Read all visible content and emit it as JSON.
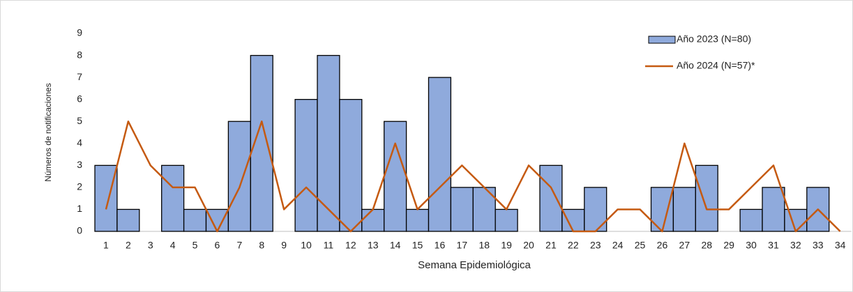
{
  "chart_data": {
    "type": "bar_line",
    "y_label": "Números de notificaciones",
    "x_label": "Semana Epidemiológica",
    "categories": [
      "1",
      "2",
      "3",
      "4",
      "5",
      "6",
      "7",
      "8",
      "9",
      "10",
      "11",
      "12",
      "13",
      "14",
      "15",
      "16",
      "17",
      "18",
      "19",
      "20",
      "21",
      "22",
      "23",
      "24",
      "25",
      "26",
      "27",
      "28",
      "29",
      "30",
      "31",
      "32",
      "33",
      "34"
    ],
    "series": [
      {
        "name": "Año 2023 (N=80)",
        "type": "bar",
        "color": "#8faadc",
        "values": [
          3,
          1,
          0,
          3,
          1,
          1,
          5,
          8,
          0,
          6,
          8,
          6,
          1,
          5,
          1,
          7,
          2,
          2,
          1,
          0,
          3,
          1,
          2,
          0,
          0,
          2,
          2,
          3,
          0,
          1,
          2,
          1,
          2,
          0
        ]
      },
      {
        "name": "Año 2024 (N=57)*",
        "type": "line",
        "color": "#c55a11",
        "values": [
          1,
          5,
          3,
          2,
          2,
          0,
          2,
          5,
          1,
          2,
          1,
          0,
          1,
          4,
          1,
          2,
          3,
          2,
          1,
          3,
          2,
          0,
          0,
          1,
          1,
          0,
          4,
          1,
          1,
          2,
          3,
          0,
          1,
          0
        ]
      }
    ],
    "ylim": [
      0,
      9
    ],
    "yticks": [
      0,
      1,
      2,
      3,
      4,
      5,
      6,
      7,
      8,
      9
    ]
  }
}
